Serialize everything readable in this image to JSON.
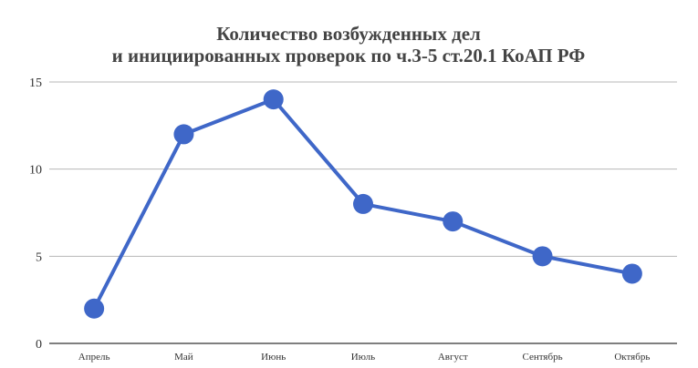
{
  "chart_data": {
    "type": "line",
    "title": [
      "Количество возбужденных дел",
      "и инициированных проверок по ч.3-5 ст.20.1 КоАП РФ"
    ],
    "categories": [
      "Апрель",
      "Май",
      "Июнь",
      "Июль",
      "Август",
      "Сентябрь",
      "Октябрь"
    ],
    "series": [
      {
        "values": [
          2,
          12,
          14,
          8,
          7,
          5,
          4
        ],
        "color": "#3f67c8"
      }
    ],
    "ylim": [
      0,
      15
    ],
    "yticks": [
      0,
      5,
      10,
      15
    ],
    "grid": true,
    "legend": "none",
    "colors": {
      "line": "#3f67c8",
      "grid": "#b7b7b7",
      "axis": "#333333",
      "title": "#444444"
    }
  }
}
